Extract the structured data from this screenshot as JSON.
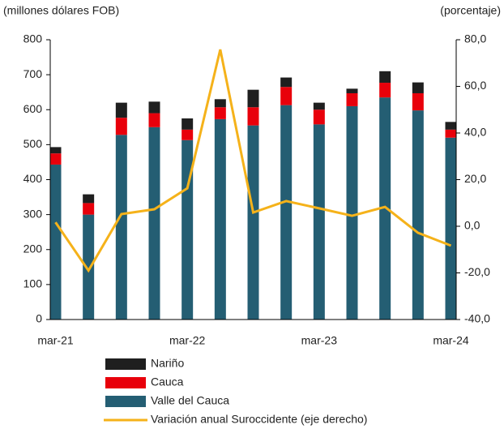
{
  "chart_data": {
    "type": "bar",
    "y_label": "(millones dólares FOB)",
    "y2_label": "(porcentaje)",
    "categories": [
      "mar-21",
      null,
      null,
      null,
      "mar-22",
      null,
      null,
      null,
      "mar-23",
      null,
      null,
      null,
      "mar-24"
    ],
    "stacked": true,
    "series": [
      {
        "name": "Valle del Cauca",
        "color": "#245e73",
        "values": [
          443,
          300,
          528,
          550,
          513,
          573,
          555,
          613,
          558,
          610,
          635,
          598,
          520
        ]
      },
      {
        "name": "Cauca",
        "color": "#e8000b",
        "values": [
          32,
          33,
          49,
          40,
          30,
          34,
          52,
          52,
          42,
          37,
          42,
          49,
          23
        ]
      },
      {
        "name": "Nariño",
        "color": "#1f1f1f",
        "values": [
          18,
          25,
          43,
          33,
          32,
          23,
          50,
          27,
          20,
          13,
          33,
          31,
          22
        ]
      },
      {
        "name": "Variación anual Suroccidente (eje derecho)",
        "type": "line",
        "axis": "y2",
        "color": "#f5b21a",
        "values": [
          1.7,
          -19,
          5.2,
          7.3,
          16.3,
          75.8,
          5.9,
          10.8,
          7.7,
          4.5,
          8.3,
          -2.8,
          -8.3
        ]
      }
    ],
    "ylim": [
      0,
      800
    ],
    "yticks": [
      0,
      100,
      200,
      300,
      400,
      500,
      600,
      700,
      800
    ],
    "y2lim": [
      -40,
      80
    ],
    "y2ticks": [
      {
        "value": -40,
        "label": "-40,0"
      },
      {
        "value": -20,
        "label": "-20,0"
      },
      {
        "value": 0,
        "label": "0,0"
      },
      {
        "value": 20,
        "label": "20,0"
      },
      {
        "value": 40,
        "label": "40,0"
      },
      {
        "value": 60,
        "label": "60,0"
      },
      {
        "value": 80,
        "label": "80,0"
      }
    ]
  }
}
